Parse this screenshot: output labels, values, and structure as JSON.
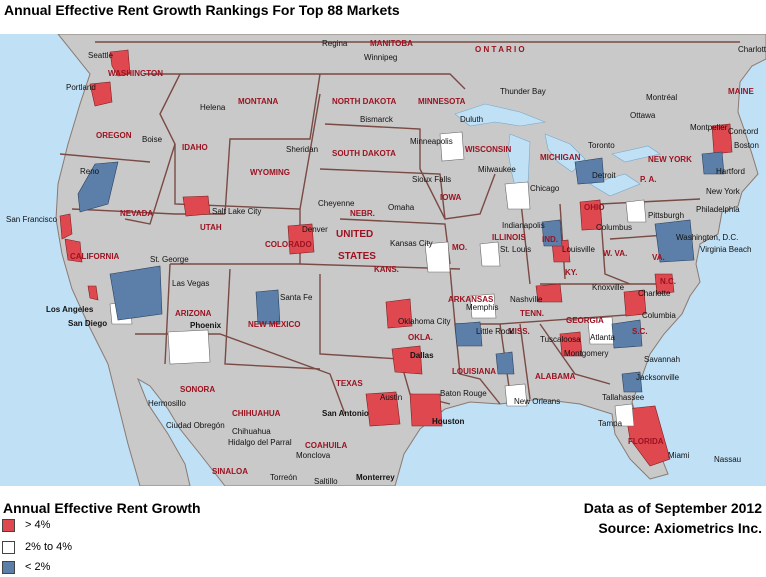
{
  "title": "Annual Effective Rent Growth Rankings For Top 88 Markets",
  "colors": {
    "water": "#bfe0f5",
    "land": "#c9c9c9",
    "high": "#e04850",
    "mid": "#ffffff",
    "low": "#5b7fa8",
    "border": "#7a4a44",
    "region_label": "#9c1220"
  },
  "legend": {
    "title": "Annual Effective Rent Growth",
    "items": [
      {
        "label": "> 4%",
        "color": "#e04850"
      },
      {
        "label": "2% to 4%",
        "color": "#ffffff"
      },
      {
        "label": "< 2%",
        "color": "#5b7fa8"
      }
    ]
  },
  "footnote": {
    "date": "Data as of September 2012",
    "source": "Source:  Axiometrics Inc."
  },
  "region_labels": [
    "WASHINGTON",
    "OREGON",
    "IDAHO",
    "MONTANA",
    "WYOMING",
    "NEVADA",
    "UTAH",
    "COLORADO",
    "CALIFORNIA",
    "ARIZONA",
    "NEW MEXICO",
    "NORTH DAKOTA",
    "SOUTH DAKOTA",
    "NEBR.",
    "KANS.",
    "MINNESOTA",
    "IOWA",
    "WISCONSIN",
    "MICHIGAN",
    "ILLINOIS",
    "IND.",
    "OHIO",
    "MO.",
    "ARKANSAS",
    "OKLA.",
    "TEXAS",
    "LOUISIANA",
    "MISS.",
    "ALABAMA",
    "GEORGIA",
    "TENN.",
    "KY.",
    "W. VA.",
    "VA.",
    "N.C.",
    "S.C.",
    "FLORIDA",
    "NEW YORK",
    "P. A.",
    "MAINE",
    "MANITOBA",
    "O N T A R I O",
    "SONORA",
    "CHIHUAHUA",
    "COAHUILA",
    "SINALOA",
    "UNITED",
    "STATES"
  ],
  "city_labels": [
    "Regina",
    "Winnipeg",
    "Seattle",
    "Portland",
    "Helena",
    "Boise",
    "Sheridan",
    "Bismarck",
    "Duluth",
    "Thunder Bay",
    "Montréal",
    "Ottawa",
    "Montpelier",
    "Concord",
    "Boston",
    "Charlotte",
    "Minneapolis",
    "Toronto",
    "Detroit",
    "Hartford",
    "New York",
    "Philadelphia",
    "Chicago",
    "Milwaukee",
    "Sioux Falls",
    "Reno",
    "San Francisco",
    "Salt Lake City",
    "Cheyenne",
    "Denver",
    "Omaha",
    "Kansas City",
    "St. Louis",
    "Indianapolis",
    "Columbus",
    "Pittsburgh",
    "Washington, D.C.",
    "Virginia Beach",
    "Louisville",
    "St. George",
    "Las Vegas",
    "Los Angeles",
    "San Diego",
    "Phoenix",
    "Santa Fe",
    "Oklahoma City",
    "Memphis",
    "Nashville",
    "Knoxville",
    "Charlotte",
    "Columbia",
    "Little Rock",
    "Atlanta",
    "Tuscaloosa",
    "Savannah",
    "Dallas",
    "Montgomery",
    "Jacksonville",
    "Tallahassee",
    "Hermosillo",
    "Chihuahua",
    "Hidalgo del Parral",
    "Ciudad Obregón",
    "Austin",
    "San Antonio",
    "Houston",
    "Baton Rouge",
    "New Orleans",
    "Monclova",
    "Torreón",
    "Saltillo",
    "Monterrey",
    "Tampa",
    "Miami",
    "Nassau"
  ]
}
